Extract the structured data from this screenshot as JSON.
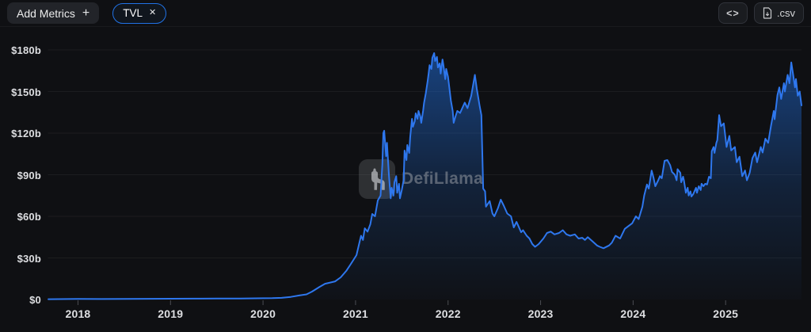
{
  "header": {
    "add_metrics_label": "Add Metrics",
    "add_metrics_plus": "+",
    "metric_chip": {
      "label": "TVL",
      "close": "✕"
    },
    "embed_button": "<>",
    "csv_button": ".csv"
  },
  "watermark": {
    "text": "DefiLlama"
  },
  "colors": {
    "background": "#0f1013",
    "accent_blue": "#2172E5",
    "line": "#2e77ee",
    "grid": "rgba(255,255,255,0.055)",
    "tick": "#4b4d53",
    "label": "#dedfe2"
  },
  "chart_data": {
    "type": "area",
    "title": "TVL",
    "xlabel": "",
    "ylabel": "",
    "unit": "USD billions",
    "grid": true,
    "legend_position": "none",
    "xlim": [
      2017.675,
      2025.82
    ],
    "ylim": [
      0,
      180
    ],
    "x_ticks": [
      2018,
      2019,
      2020,
      2021,
      2022,
      2023,
      2024,
      2025
    ],
    "x_tick_labels": [
      "2018",
      "2019",
      "2020",
      "2021",
      "2022",
      "2023",
      "2024",
      "2025"
    ],
    "y_ticks": [
      0,
      30,
      60,
      90,
      120,
      150,
      180
    ],
    "y_tick_labels": [
      "$0",
      "$30b",
      "$60b",
      "$90b",
      "$120b",
      "$150b",
      "$180b"
    ],
    "series": [
      {
        "name": "TVL",
        "points": [
          [
            2017.68,
            0.2
          ],
          [
            2018.0,
            0.4
          ],
          [
            2018.25,
            0.35
          ],
          [
            2018.5,
            0.45
          ],
          [
            2018.75,
            0.5
          ],
          [
            2019.0,
            0.55
          ],
          [
            2019.25,
            0.6
          ],
          [
            2019.5,
            0.7
          ],
          [
            2019.75,
            0.75
          ],
          [
            2020.0,
            0.9
          ],
          [
            2020.1,
            1.0
          ],
          [
            2020.2,
            1.2
          ],
          [
            2020.3,
            1.9
          ],
          [
            2020.39,
            2.9
          ],
          [
            2020.47,
            3.7
          ],
          [
            2020.53,
            5.7
          ],
          [
            2020.61,
            9.1
          ],
          [
            2020.67,
            11.4
          ],
          [
            2020.73,
            12.3
          ],
          [
            2020.78,
            13.1
          ],
          [
            2020.84,
            16
          ],
          [
            2020.9,
            20.6
          ],
          [
            2020.95,
            25.7
          ],
          [
            2021.01,
            32
          ],
          [
            2021.04,
            40.5
          ],
          [
            2021.06,
            46
          ],
          [
            2021.08,
            43
          ],
          [
            2021.1,
            51.4
          ],
          [
            2021.13,
            49
          ],
          [
            2021.16,
            54.3
          ],
          [
            2021.18,
            61.7
          ],
          [
            2021.21,
            60
          ],
          [
            2021.24,
            71.4
          ],
          [
            2021.27,
            75
          ],
          [
            2021.29,
            97.7
          ],
          [
            2021.3,
            120
          ],
          [
            2021.31,
            121.7
          ],
          [
            2021.33,
            103.4
          ],
          [
            2021.34,
            113
          ],
          [
            2021.36,
            90.3
          ],
          [
            2021.38,
            73
          ],
          [
            2021.39,
            80.6
          ],
          [
            2021.41,
            75
          ],
          [
            2021.42,
            84.6
          ],
          [
            2021.44,
            89
          ],
          [
            2021.45,
            77
          ],
          [
            2021.47,
            83.4
          ],
          [
            2021.48,
            73
          ],
          [
            2021.5,
            79
          ],
          [
            2021.52,
            86.3
          ],
          [
            2021.53,
            107.4
          ],
          [
            2021.55,
            100.6
          ],
          [
            2021.56,
            111.4
          ],
          [
            2021.58,
            105.7
          ],
          [
            2021.59,
            117
          ],
          [
            2021.61,
            130.3
          ],
          [
            2021.62,
            124.6
          ],
          [
            2021.64,
            128.6
          ],
          [
            2021.65,
            134.3
          ],
          [
            2021.67,
            130.3
          ],
          [
            2021.68,
            136
          ],
          [
            2021.7,
            132
          ],
          [
            2021.71,
            127.4
          ],
          [
            2021.73,
            136
          ],
          [
            2021.74,
            141.7
          ],
          [
            2021.76,
            149
          ],
          [
            2021.78,
            157.7
          ],
          [
            2021.79,
            162.9
          ],
          [
            2021.8,
            169
          ],
          [
            2021.82,
            166.3
          ],
          [
            2021.83,
            174.3
          ],
          [
            2021.85,
            177.7
          ],
          [
            2021.86,
            172
          ],
          [
            2021.88,
            175
          ],
          [
            2021.89,
            167.4
          ],
          [
            2021.91,
            170.3
          ],
          [
            2021.92,
            162.9
          ],
          [
            2021.94,
            173.1
          ],
          [
            2021.95,
            169
          ],
          [
            2021.97,
            158.9
          ],
          [
            2021.98,
            166.3
          ],
          [
            2022.0,
            160.6
          ],
          [
            2022.01,
            154.9
          ],
          [
            2022.03,
            143.4
          ],
          [
            2022.05,
            136
          ],
          [
            2022.06,
            127.4
          ],
          [
            2022.08,
            132
          ],
          [
            2022.1,
            136
          ],
          [
            2022.13,
            134.5
          ],
          [
            2022.18,
            142
          ],
          [
            2022.21,
            138
          ],
          [
            2022.25,
            147
          ],
          [
            2022.29,
            162
          ],
          [
            2022.31,
            152
          ],
          [
            2022.34,
            140
          ],
          [
            2022.36,
            133
          ],
          [
            2022.38,
            80
          ],
          [
            2022.4,
            78
          ],
          [
            2022.41,
            67
          ],
          [
            2022.45,
            71
          ],
          [
            2022.48,
            62
          ],
          [
            2022.5,
            60
          ],
          [
            2022.54,
            66
          ],
          [
            2022.57,
            72
          ],
          [
            2022.6,
            68
          ],
          [
            2022.64,
            62
          ],
          [
            2022.68,
            60
          ],
          [
            2022.71,
            52
          ],
          [
            2022.74,
            56
          ],
          [
            2022.79,
            48.5
          ],
          [
            2022.81,
            50
          ],
          [
            2022.85,
            46
          ],
          [
            2022.88,
            44
          ],
          [
            2022.91,
            40
          ],
          [
            2022.94,
            38
          ],
          [
            2022.98,
            40
          ],
          [
            2023.03,
            44
          ],
          [
            2023.07,
            48
          ],
          [
            2023.11,
            49
          ],
          [
            2023.15,
            47
          ],
          [
            2023.2,
            48
          ],
          [
            2023.24,
            50
          ],
          [
            2023.28,
            47
          ],
          [
            2023.32,
            46
          ],
          [
            2023.37,
            47
          ],
          [
            2023.41,
            44
          ],
          [
            2023.45,
            44.5
          ],
          [
            2023.48,
            43
          ],
          [
            2023.51,
            45
          ],
          [
            2023.56,
            42
          ],
          [
            2023.61,
            39
          ],
          [
            2023.64,
            38
          ],
          [
            2023.68,
            37
          ],
          [
            2023.74,
            39
          ],
          [
            2023.77,
            41
          ],
          [
            2023.81,
            46
          ],
          [
            2023.86,
            44
          ],
          [
            2023.91,
            51
          ],
          [
            2023.95,
            53
          ],
          [
            2023.99,
            55
          ],
          [
            2024.03,
            60
          ],
          [
            2024.06,
            58
          ],
          [
            2024.1,
            67
          ],
          [
            2024.12,
            75
          ],
          [
            2024.15,
            83
          ],
          [
            2024.17,
            80
          ],
          [
            2024.2,
            93
          ],
          [
            2024.22,
            88
          ],
          [
            2024.24,
            81.7
          ],
          [
            2024.27,
            85.7
          ],
          [
            2024.29,
            89
          ],
          [
            2024.31,
            87.5
          ],
          [
            2024.34,
            100
          ],
          [
            2024.37,
            100.6
          ],
          [
            2024.4,
            97
          ],
          [
            2024.42,
            92
          ],
          [
            2024.45,
            90
          ],
          [
            2024.47,
            86
          ],
          [
            2024.48,
            94
          ],
          [
            2024.51,
            91.4
          ],
          [
            2024.52,
            84.6
          ],
          [
            2024.54,
            88.6
          ],
          [
            2024.55,
            85.7
          ],
          [
            2024.57,
            77
          ],
          [
            2024.59,
            80.6
          ],
          [
            2024.6,
            75
          ],
          [
            2024.62,
            78
          ],
          [
            2024.63,
            74.3
          ],
          [
            2024.65,
            76
          ],
          [
            2024.68,
            80.6
          ],
          [
            2024.69,
            77
          ],
          [
            2024.71,
            81.7
          ],
          [
            2024.73,
            79
          ],
          [
            2024.74,
            83.5
          ],
          [
            2024.76,
            81.7
          ],
          [
            2024.78,
            83.5
          ],
          [
            2024.8,
            83
          ],
          [
            2024.82,
            88.6
          ],
          [
            2024.84,
            87.4
          ],
          [
            2024.85,
            107
          ],
          [
            2024.87,
            110
          ],
          [
            2024.88,
            105.7
          ],
          [
            2024.9,
            113
          ],
          [
            2024.91,
            115
          ],
          [
            2024.92,
            124
          ],
          [
            2024.93,
            133
          ],
          [
            2024.95,
            125
          ],
          [
            2024.98,
            127
          ],
          [
            2025.01,
            110
          ],
          [
            2025.04,
            118
          ],
          [
            2025.06,
            107.5
          ],
          [
            2025.1,
            110
          ],
          [
            2025.12,
            99
          ],
          [
            2025.15,
            103
          ],
          [
            2025.18,
            89
          ],
          [
            2025.21,
            93
          ],
          [
            2025.23,
            86
          ],
          [
            2025.26,
            91.4
          ],
          [
            2025.29,
            102
          ],
          [
            2025.32,
            106
          ],
          [
            2025.34,
            99
          ],
          [
            2025.38,
            110
          ],
          [
            2025.4,
            106
          ],
          [
            2025.43,
            116
          ],
          [
            2025.46,
            113
          ],
          [
            2025.49,
            125
          ],
          [
            2025.52,
            136
          ],
          [
            2025.53,
            130
          ],
          [
            2025.56,
            147.4
          ],
          [
            2025.58,
            153
          ],
          [
            2025.6,
            144.6
          ],
          [
            2025.63,
            156
          ],
          [
            2025.64,
            150
          ],
          [
            2025.67,
            162
          ],
          [
            2025.69,
            156
          ],
          [
            2025.71,
            171
          ],
          [
            2025.73,
            162
          ],
          [
            2025.75,
            153
          ],
          [
            2025.76,
            159
          ],
          [
            2025.78,
            147
          ],
          [
            2025.8,
            150
          ],
          [
            2025.82,
            140
          ]
        ]
      }
    ]
  }
}
